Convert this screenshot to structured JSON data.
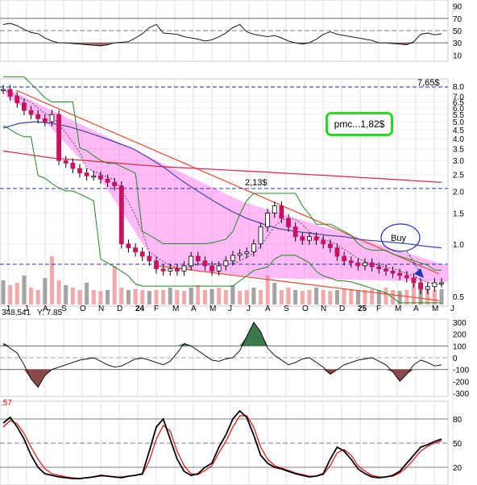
{
  "chart_data": {
    "type": "candlestick",
    "x_month_labels": [
      "J",
      "J",
      "A",
      "S",
      "O",
      "N",
      "D",
      "24",
      "F",
      "M",
      "A",
      "M",
      "J",
      "J",
      "A",
      "S",
      "O",
      "N",
      "D",
      "25",
      "F",
      "M",
      "A",
      "M",
      "J"
    ],
    "annotations": {
      "high_price": "7,65$",
      "mid_price": "2,13$",
      "pmc": "pmc...1,82$",
      "buy": "Buy",
      "volume_readout": "348,541",
      "y_readout": "Y: 7.85",
      "stoch_value": ".57"
    },
    "rsi_panel": {
      "ticks": [
        "90",
        "70",
        "50",
        "30",
        "10"
      ],
      "values": [
        60,
        62,
        58,
        52,
        47,
        45,
        38,
        33,
        30,
        30,
        29,
        28,
        27,
        26,
        25,
        27,
        30,
        31,
        32,
        38,
        45,
        55,
        60,
        46,
        45,
        44,
        40,
        38,
        36,
        33,
        35,
        40,
        46,
        55,
        60,
        48,
        44,
        42,
        40,
        42,
        38,
        33,
        30,
        28,
        30,
        36,
        44,
        48,
        44,
        42,
        40,
        38,
        36,
        34,
        30,
        30,
        29,
        28,
        27,
        32,
        44,
        46,
        43,
        45
      ]
    },
    "price_panel": {
      "scale": "log",
      "ticks": [
        "8.0",
        "7.0",
        "6.5",
        "6.0",
        "5.5",
        "5.0",
        "4.5",
        "4.0",
        "3.5",
        "3.0",
        "2.5",
        "2.0",
        "1.5",
        "1.0",
        "0.5"
      ],
      "closes": [
        7.65,
        7.0,
        6.4,
        5.8,
        5.5,
        5.2,
        5.0,
        5.5,
        3.0,
        2.9,
        2.7,
        2.55,
        2.45,
        2.45,
        2.35,
        2.25,
        2.15,
        1.0,
        0.95,
        0.9,
        0.85,
        0.8,
        0.72,
        0.7,
        0.72,
        0.7,
        0.75,
        0.85,
        0.8,
        0.75,
        0.7,
        0.75,
        0.8,
        0.86,
        0.88,
        0.9,
        1.0,
        1.25,
        1.5,
        1.65,
        1.4,
        1.25,
        1.1,
        1.05,
        1.1,
        1.05,
        1.0,
        0.95,
        0.85,
        0.8,
        0.78,
        0.75,
        0.78,
        0.74,
        0.72,
        0.7,
        0.68,
        0.66,
        0.64,
        0.6,
        0.55,
        0.57,
        0.6,
        0.6
      ],
      "ma_long": [
        3.4,
        3.3,
        3.2,
        3.1,
        3.05,
        3.0,
        2.95,
        2.9,
        2.85,
        2.8,
        2.76,
        2.73,
        2.7,
        2.67,
        2.64,
        2.61,
        2.58,
        2.55,
        2.52,
        2.49,
        2.46,
        2.43,
        2.4,
        2.37,
        2.34,
        2.31,
        2.28,
        2.25
      ],
      "ma_mid": [
        4.6,
        4.9,
        5.0,
        4.9,
        4.7,
        4.4,
        4.1,
        3.8,
        3.5,
        3.1,
        2.7,
        2.3,
        2.0,
        1.75,
        1.55,
        1.4,
        1.3,
        1.22,
        1.18,
        1.15,
        1.12,
        1.1,
        1.06,
        1.04,
        1.02,
        1.0,
        0.97,
        0.95
      ],
      "volume": [
        0.5,
        0.4,
        0.45,
        0.6,
        0.35,
        0.3,
        0.55,
        1.0,
        0.5,
        0.4,
        0.35,
        0.3,
        0.45,
        0.3,
        0.28,
        0.3,
        0.8,
        0.35,
        0.3,
        0.32,
        0.3,
        0.28,
        0.3,
        0.3,
        0.35,
        0.3,
        0.28,
        0.35,
        0.4,
        0.3,
        0.32,
        0.35,
        0.3,
        0.4,
        0.28,
        0.3,
        0.35,
        0.3,
        0.6,
        0.45,
        0.3,
        0.35,
        0.3,
        0.28,
        0.3,
        0.35,
        0.3,
        0.28,
        0.3,
        0.32,
        0.3,
        0.28,
        0.3,
        0.32,
        0.3,
        0.35,
        0.3,
        0.28,
        0.3,
        0.45,
        0.3,
        0.35,
        0.3,
        0.32
      ]
    },
    "cci_panel": {
      "ticks": [
        "300",
        "200",
        "100",
        "0",
        "-100",
        "-200",
        "-300"
      ],
      "values": [
        120,
        80,
        40,
        -60,
        -180,
        -250,
        -150,
        -100,
        -80,
        -60,
        -40,
        -20,
        -10,
        0,
        -30,
        -60,
        -80,
        -70,
        -40,
        -10,
        -5,
        -20,
        -40,
        -60,
        -30,
        40,
        120,
        100,
        60,
        20,
        -20,
        -30,
        -10,
        0,
        60,
        180,
        300,
        220,
        80,
        20,
        -20,
        -60,
        -40,
        -10,
        0,
        -40,
        -80,
        -140,
        -100,
        -60,
        -40,
        -20,
        -10,
        0,
        -30,
        -60,
        -120,
        -200,
        -140,
        -60,
        -20,
        -40,
        -70,
        -60
      ]
    },
    "stoch_panel": {
      "ticks": [
        "80",
        "50",
        "20"
      ],
      "k": [
        75,
        82,
        70,
        55,
        35,
        20,
        12,
        10,
        8,
        7,
        6,
        6,
        7,
        8,
        10,
        9,
        8,
        7,
        9,
        10,
        12,
        40,
        70,
        80,
        55,
        30,
        15,
        10,
        12,
        20,
        25,
        45,
        60,
        80,
        90,
        82,
        60,
        35,
        25,
        20,
        18,
        15,
        12,
        10,
        8,
        9,
        12,
        30,
        45,
        40,
        30,
        18,
        12,
        8,
        7,
        8,
        10,
        15,
        25,
        35,
        45,
        48,
        52,
        55
      ],
      "d": [
        70,
        78,
        74,
        62,
        45,
        30,
        18,
        12,
        10,
        8,
        7,
        6,
        7,
        8,
        9,
        9,
        8,
        8,
        9,
        10,
        11,
        28,
        55,
        72,
        65,
        40,
        22,
        12,
        11,
        16,
        22,
        38,
        52,
        70,
        84,
        84,
        70,
        45,
        30,
        22,
        19,
        16,
        13,
        11,
        9,
        9,
        11,
        22,
        38,
        42,
        35,
        22,
        15,
        10,
        8,
        8,
        9,
        13,
        20,
        30,
        40,
        46,
        50,
        53
      ]
    }
  }
}
